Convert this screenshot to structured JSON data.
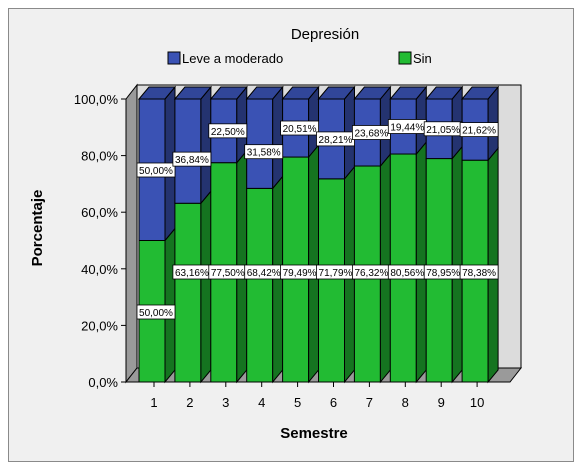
{
  "chart_data": {
    "type": "bar",
    "stacked": true,
    "percent": true,
    "three_d": true,
    "title": "Depresión",
    "xlabel": "Semestre",
    "ylabel": "Porcentaje",
    "categories": [
      "1",
      "2",
      "3",
      "4",
      "5",
      "6",
      "7",
      "8",
      "9",
      "10"
    ],
    "series": [
      {
        "name": "Sin",
        "color": "#22bb33",
        "values": [
          50.0,
          63.16,
          77.5,
          68.42,
          79.49,
          71.79,
          76.32,
          80.56,
          78.95,
          78.38
        ],
        "labels": [
          "50,00%",
          "63,16%",
          "77,50%",
          "68,42%",
          "79,49%",
          "71,79%",
          "76,32%",
          "80,56%",
          "78,95%",
          "78,38%"
        ]
      },
      {
        "name": "Leve a moderado",
        "color": "#3a52b4",
        "values": [
          50.0,
          36.84,
          22.5,
          31.58,
          20.51,
          28.21,
          23.68,
          19.44,
          21.05,
          21.62
        ],
        "labels": [
          "50,00%",
          "36,84%",
          "22,50%",
          "31,58%",
          "20,51%",
          "28,21%",
          "23,68%",
          "19,44%",
          "21,05%",
          "21,62%"
        ]
      }
    ],
    "ylim": [
      0,
      100
    ],
    "yticks": [
      0,
      20,
      40,
      60,
      80,
      100
    ],
    "ytick_labels": [
      "0,0%",
      "20,0%",
      "40,0%",
      "60,0%",
      "80,0%",
      "100,0%"
    ],
    "legend": {
      "placement": "top",
      "order": [
        "Leve a moderado",
        "Sin"
      ]
    },
    "grid": false,
    "colors": {
      "frame_bg": "#f0f0f0",
      "plot_wall": "#dcdcdc",
      "plot_side": "#9a9a9a"
    }
  }
}
